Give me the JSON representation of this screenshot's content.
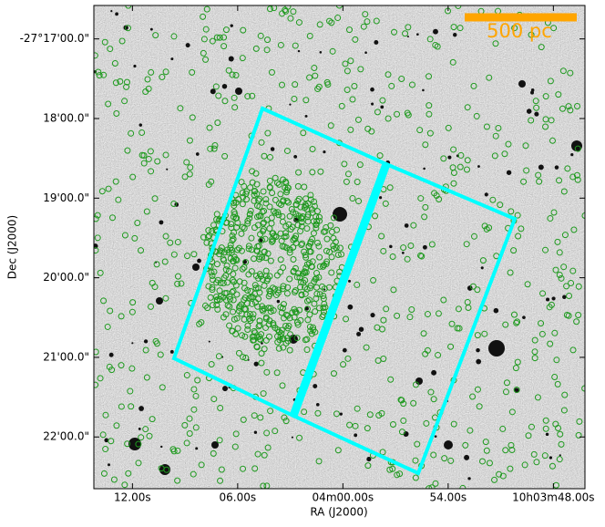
{
  "chart_data": {
    "type": "image",
    "xlabel": "RA (J2000)",
    "ylabel": "Dec (J2000)",
    "xlim": [
      14.2,
      -13.8
    ],
    "xticks": [
      {
        "value": 12,
        "label": "12.00s"
      },
      {
        "value": 6,
        "label": "06.00s"
      },
      {
        "value": 0,
        "label": "04m00.00s"
      },
      {
        "value": -6,
        "label": "54.00s"
      },
      {
        "value": -12,
        "label": "10h03m48.00s"
      }
    ],
    "ylim": [
      22.65,
      16.58
    ],
    "yticks": [
      {
        "value": 17,
        "label": "-27°17'00.0\""
      },
      {
        "value": 18,
        "label": "18'00.0\""
      },
      {
        "value": 19,
        "label": "19'00.0\""
      },
      {
        "value": 20,
        "label": "20'00.0\""
      },
      {
        "value": 21,
        "label": "21'00.0\""
      },
      {
        "value": 22,
        "label": "22'00.0\""
      }
    ],
    "scale_bar": "500 pc",
    "scale_color": "#ffa500",
    "footprint_color": "#00ffff",
    "source_color": "#1f9a1f"
  }
}
